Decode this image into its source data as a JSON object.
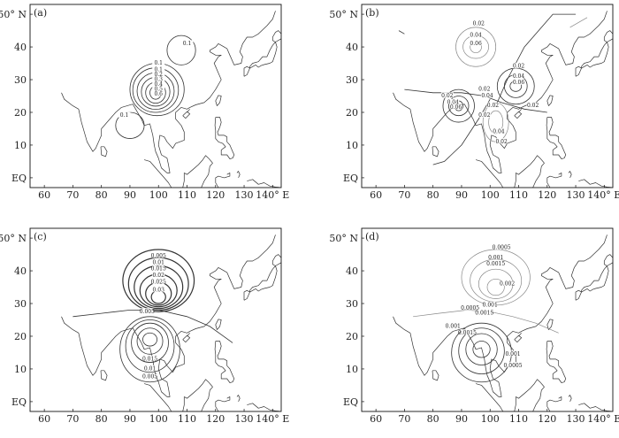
{
  "figure": {
    "x_ticks": [
      "60",
      "70",
      "80",
      "90",
      "100",
      "110",
      "120",
      "130",
      "140° E"
    ],
    "y_ticks": [
      "EQ",
      "10",
      "20",
      "30",
      "40",
      "50° N"
    ],
    "panels": [
      {
        "label": "(a)",
        "labels": [
          "0.1",
          "0.1",
          "0.1",
          "0.1",
          "0.2",
          "0.3",
          "0.4",
          "0.5",
          "0.6"
        ]
      },
      {
        "label": "(b)",
        "labels": [
          "0.02",
          "0.04",
          "0.06",
          "0.02",
          "0.04",
          "0.06",
          "0.02",
          "0.04",
          "0.06",
          "0.02",
          "0.04",
          "0.02",
          "0.02",
          "0.02",
          "0.04",
          "0.02"
        ]
      },
      {
        "label": "(c)",
        "labels": [
          "0.005",
          "0.01",
          "0.015",
          "0.02",
          "0.025",
          "0.03",
          "0.005",
          "0.015",
          "0.01",
          "0.005"
        ]
      },
      {
        "label": "(d)",
        "labels": [
          "0.0005",
          "0.001",
          "0.0015",
          "0.002",
          "0.0005",
          "0.001",
          "0.0015",
          "0.001",
          "0.0015",
          "0.001",
          "0.0005"
        ]
      }
    ]
  }
}
